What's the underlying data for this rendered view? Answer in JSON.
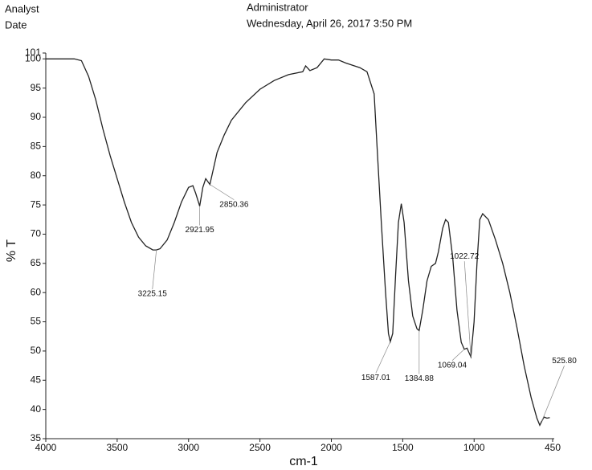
{
  "header": {
    "analyst": "Analyst",
    "date": "Date",
    "user": "Administrator",
    "datetime": "Wednesday, April 26, 2017 3:50 PM"
  },
  "chart_data": {
    "type": "line",
    "x_label": "cm-1",
    "y_label": "% T",
    "color": "#222",
    "x": [
      4000,
      3900,
      3800,
      3750,
      3700,
      3650,
      3600,
      3550,
      3500,
      3450,
      3400,
      3350,
      3300,
      3250,
      3225.15,
      3200,
      3150,
      3100,
      3050,
      3000,
      2970,
      2950,
      2921.95,
      2900,
      2880,
      2850.36,
      2800,
      2750,
      2700,
      2600,
      2500,
      2400,
      2300,
      2200,
      2180,
      2150,
      2100,
      2050,
      2000,
      1950,
      1900,
      1800,
      1750,
      1700,
      1680,
      1650,
      1620,
      1600,
      1587.01,
      1570,
      1550,
      1530,
      1510,
      1490,
      1460,
      1430,
      1400,
      1384.88,
      1360,
      1330,
      1300,
      1270,
      1250,
      1220,
      1200,
      1180,
      1150,
      1120,
      1090,
      1069.04,
      1050,
      1022.72,
      1000,
      980,
      960,
      940,
      900,
      850,
      800,
      750,
      700,
      650,
      600,
      560,
      540,
      525.8,
      510,
      490,
      470
    ],
    "values": [
      100,
      100,
      100,
      99.7,
      97,
      93,
      88,
      83.5,
      79.5,
      75.5,
      72,
      69.5,
      68,
      67.3,
      67.3,
      67.5,
      69,
      72,
      75.5,
      78,
      78.3,
      77,
      74.8,
      78,
      79.5,
      78.5,
      84,
      87,
      89.5,
      92.5,
      94.8,
      96.3,
      97.3,
      97.8,
      98.8,
      98,
      98.5,
      100,
      99.8,
      99.8,
      99.3,
      98.5,
      97.8,
      94,
      85,
      72,
      60,
      53,
      51.6,
      53,
      63,
      72,
      75.2,
      72,
      62,
      56,
      53.8,
      53.5,
      57,
      62,
      64.5,
      65,
      67,
      71,
      72.5,
      72,
      66,
      57,
      51.5,
      50.3,
      50.5,
      49,
      55,
      65,
      72.5,
      73.5,
      72.5,
      69,
      65,
      60,
      54,
      47.5,
      42,
      38.5,
      37.3,
      38,
      38.7,
      38.5,
      38.6
    ],
    "xlim": [
      4000,
      450
    ],
    "xticks": [
      4000,
      3500,
      3000,
      2500,
      2000,
      1500,
      1000,
      450
    ],
    "ylim": [
      35,
      101
    ],
    "yticks": [
      35,
      40,
      45,
      50,
      55,
      60,
      65,
      70,
      75,
      80,
      85,
      90,
      95,
      100,
      101
    ],
    "annotations": [
      {
        "label": "3225.15",
        "x": 3225.15,
        "y": 67.3
      },
      {
        "label": "2921.95",
        "x": 2921.95,
        "y": 74.8
      },
      {
        "label": "2850.36",
        "x": 2850.36,
        "y": 78.5
      },
      {
        "label": "1587.01",
        "x": 1587.01,
        "y": 51.6
      },
      {
        "label": "1384.88",
        "x": 1384.88,
        "y": 53.5
      },
      {
        "label": "1069.04",
        "x": 1069.04,
        "y": 50.3
      },
      {
        "label": "1022.72",
        "x": 1022.72,
        "y": 49
      },
      {
        "label": "525.80",
        "x": 525.8,
        "y": 38
      }
    ]
  }
}
